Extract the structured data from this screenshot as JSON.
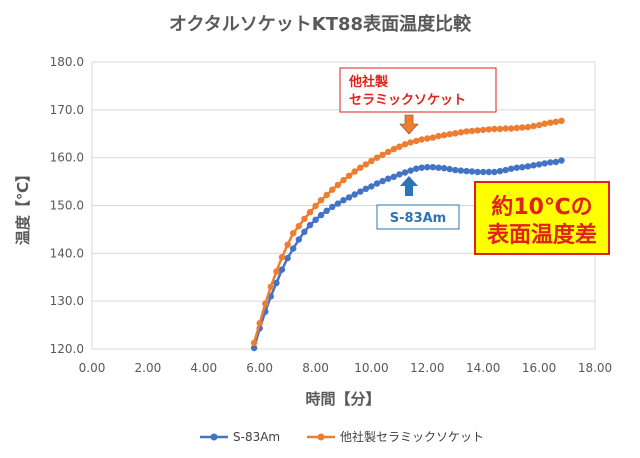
{
  "chart_data": {
    "type": "line",
    "title": "オクタルソケットKT88表面温度比較",
    "xlabel": "時間【分】",
    "ylabel": "温度【℃】",
    "xlim": [
      0,
      18
    ],
    "ylim": [
      120,
      180
    ],
    "x_ticks": [
      "0.00",
      "2.00",
      "4.00",
      "6.00",
      "8.00",
      "10.00",
      "12.00",
      "14.00",
      "16.00",
      "18.00"
    ],
    "y_ticks": [
      "120.0",
      "130.0",
      "140.0",
      "150.0",
      "160.0",
      "170.0",
      "180.0"
    ],
    "gridlines": "horizontal",
    "legend_position": "bottom",
    "series": [
      {
        "name": "S-83Am",
        "color": "#4472c4",
        "x": [
          5.8,
          6.0,
          6.2,
          6.4,
          6.6,
          6.8,
          7.0,
          7.2,
          7.4,
          7.6,
          7.8,
          8.0,
          8.2,
          8.4,
          8.6,
          8.8,
          9.0,
          9.2,
          9.4,
          9.6,
          9.8,
          10.0,
          10.2,
          10.4,
          10.6,
          10.8,
          11.0,
          11.2,
          11.4,
          11.6,
          11.8,
          12.0,
          12.2,
          12.4,
          12.6,
          12.8,
          13.0,
          13.2,
          13.4,
          13.6,
          13.8,
          14.0,
          14.2,
          14.4,
          14.6,
          14.8,
          15.0,
          15.2,
          15.4,
          15.6,
          15.8,
          16.0,
          16.2,
          16.4,
          16.6,
          16.8
        ],
        "y": [
          120.2,
          124.3,
          127.8,
          131.0,
          133.8,
          136.6,
          139.0,
          141.0,
          142.9,
          144.5,
          145.9,
          147.0,
          148.0,
          148.9,
          149.7,
          150.4,
          151.1,
          151.7,
          152.3,
          152.9,
          153.5,
          154.0,
          154.6,
          155.1,
          155.6,
          156.0,
          156.5,
          156.9,
          157.3,
          157.7,
          157.9,
          158.0,
          158.0,
          157.9,
          157.8,
          157.6,
          157.4,
          157.3,
          157.2,
          157.1,
          157.0,
          157.0,
          157.0,
          157.0,
          157.2,
          157.4,
          157.7,
          157.9,
          158.0,
          158.2,
          158.4,
          158.6,
          158.8,
          159.0,
          159.1,
          159.4
        ]
      },
      {
        "name": "他社製セラミックソケット",
        "color": "#ed7d31",
        "x": [
          5.8,
          6.0,
          6.2,
          6.4,
          6.6,
          6.8,
          7.0,
          7.2,
          7.4,
          7.6,
          7.8,
          8.0,
          8.2,
          8.4,
          8.6,
          8.8,
          9.0,
          9.2,
          9.4,
          9.6,
          9.8,
          10.0,
          10.2,
          10.4,
          10.6,
          10.8,
          11.0,
          11.2,
          11.4,
          11.6,
          11.8,
          12.0,
          12.2,
          12.4,
          12.6,
          12.8,
          13.0,
          13.2,
          13.4,
          13.6,
          13.8,
          14.0,
          14.2,
          14.4,
          14.6,
          14.8,
          15.0,
          15.2,
          15.4,
          15.6,
          15.8,
          16.0,
          16.2,
          16.4,
          16.6,
          16.8
        ],
        "y": [
          121.3,
          125.4,
          129.5,
          133.0,
          136.2,
          139.2,
          141.8,
          144.2,
          145.7,
          147.2,
          148.6,
          149.9,
          151.1,
          152.2,
          153.3,
          154.3,
          155.3,
          156.2,
          157.1,
          157.9,
          158.6,
          159.3,
          160.0,
          160.6,
          161.2,
          161.8,
          162.3,
          162.8,
          163.2,
          163.5,
          163.8,
          164.0,
          164.2,
          164.5,
          164.7,
          164.9,
          165.1,
          165.3,
          165.5,
          165.6,
          165.7,
          165.8,
          165.9,
          166.0,
          166.0,
          166.1,
          166.1,
          166.2,
          166.3,
          166.4,
          166.6,
          166.8,
          167.1,
          167.3,
          167.5,
          167.7
        ]
      }
    ],
    "annotations": {
      "other_label_line1": "他社製",
      "other_label_line2": "セラミックソケット",
      "s83_label": "S-83Am",
      "diff_line1": "約10℃の",
      "diff_line2": "表面温度差"
    }
  }
}
